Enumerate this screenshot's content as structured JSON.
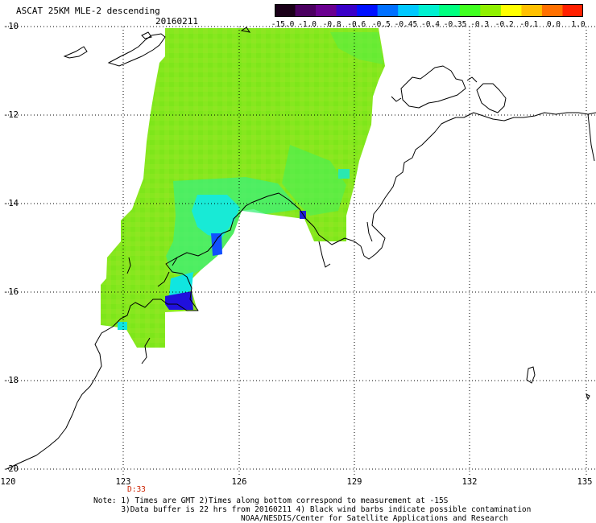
{
  "title": "ASCAT 25KM MLE-2 descending",
  "date": "20160211",
  "colorbar": {
    "labels": [
      "-15.0",
      "-1.0",
      "-0.8",
      "-0.6",
      "-0.5",
      "-0.45",
      "-0.4",
      "-0.35",
      "-0.3",
      "-0.2",
      "-0.1",
      "0.0",
      "1.0"
    ],
    "colors": [
      "#1a0018",
      "#4b0060",
      "#6a0090",
      "#3a00c8",
      "#0010ff",
      "#0070ff",
      "#00c8ff",
      "#00f0d0",
      "#00ff80",
      "#40ff20",
      "#90f000",
      "#ffff00",
      "#ffc000",
      "#ff7000",
      "#ff2000"
    ]
  },
  "axes": {
    "lat_labels": [
      "-10",
      "-12",
      "-14",
      "-16",
      "-18",
      "-20"
    ],
    "lon_labels": [
      "120",
      "123",
      "126",
      "129",
      "132",
      "135"
    ],
    "lon_range": [
      120,
      135
    ],
    "lat_range": [
      -20,
      -10
    ]
  },
  "time_label": "D:33",
  "notes": [
    "Note: 1) Times are GMT 2)Times along bottom correspond to measurement at -15S",
    "      3)Data buffer is 22 hrs from 20160211 4) Black wind barbs indicate possible contamination",
    "                                NOAA/NESDIS/Center for Satellite Applications and Research"
  ]
}
